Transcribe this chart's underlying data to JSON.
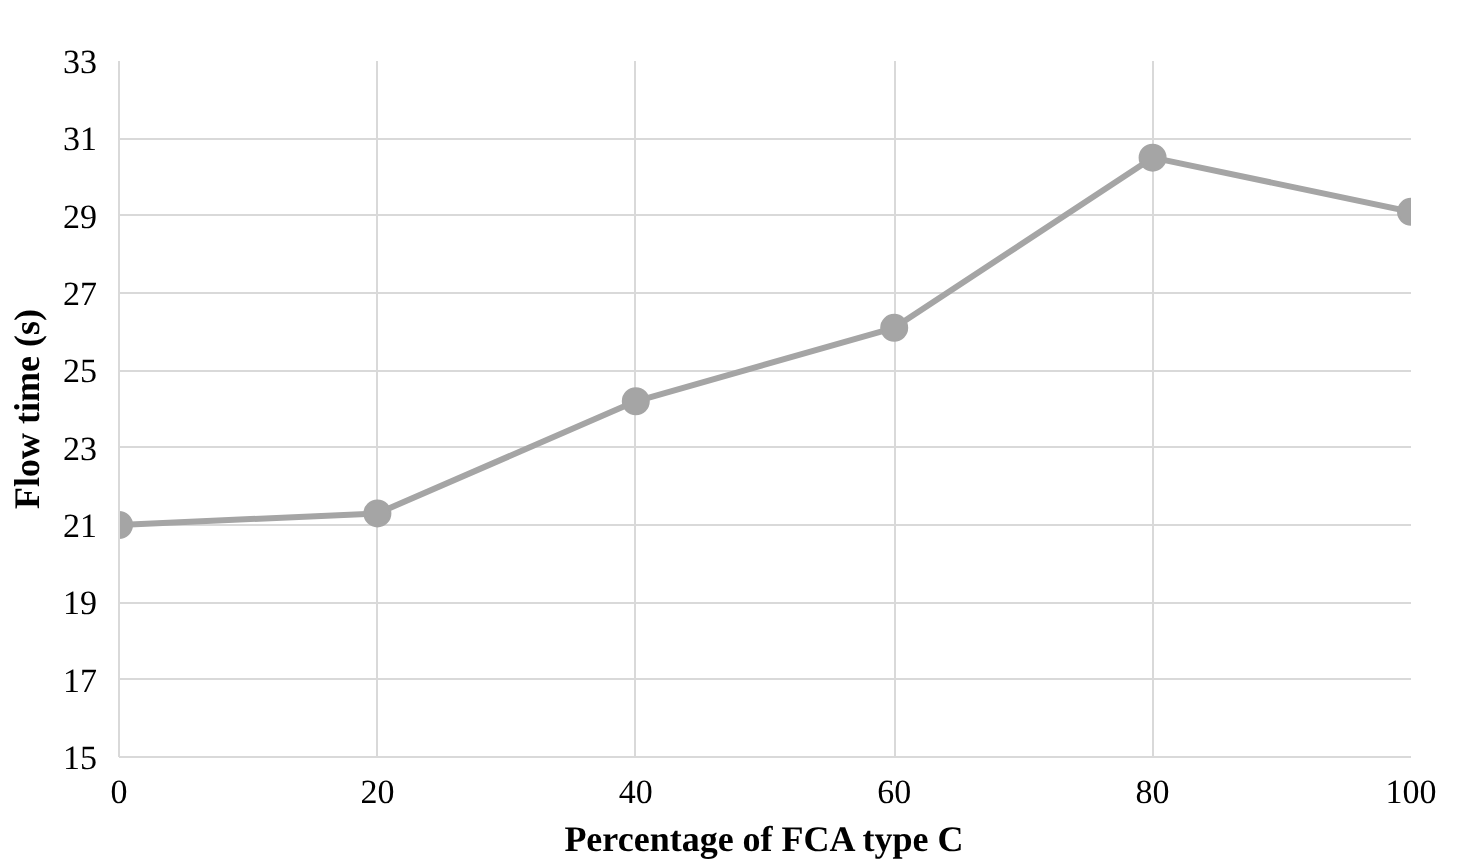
{
  "chart_data": {
    "type": "line",
    "xlabel": "Percentage of FCA type C",
    "ylabel": "Flow time (s)",
    "x": [
      0,
      20,
      40,
      60,
      80,
      100
    ],
    "series": [
      {
        "color": "#a5a5a5",
        "values": [
          21.0,
          21.3,
          24.2,
          26.1,
          30.5,
          29.1
        ]
      }
    ],
    "xlim": [
      0,
      100
    ],
    "xticks": [
      0,
      20,
      40,
      60,
      80,
      100
    ],
    "ylim": [
      15,
      33
    ],
    "yticks": [
      15,
      17,
      19,
      21,
      23,
      25,
      27,
      29,
      31,
      33
    ],
    "grid": true,
    "marker": "circle",
    "line_style": "solid"
  }
}
